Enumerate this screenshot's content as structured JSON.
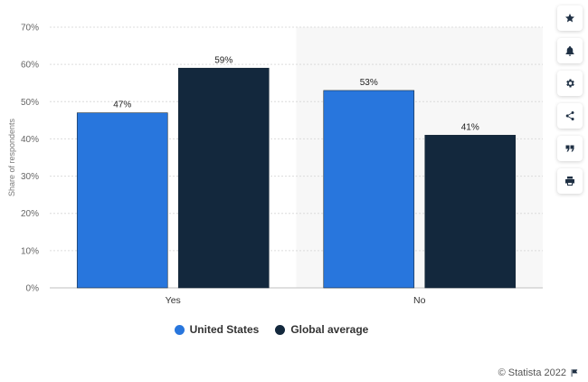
{
  "chart_data": {
    "type": "bar",
    "categories": [
      "Yes",
      "No"
    ],
    "series": [
      {
        "name": "United States",
        "values": [
          47,
          53
        ],
        "labels": [
          "47%",
          "53%"
        ],
        "color": "#2876dd"
      },
      {
        "name": "Global average",
        "values": [
          59,
          41
        ],
        "labels": [
          "59%",
          "41%"
        ],
        "color": "#13283d"
      }
    ],
    "ylabel": "Share of respondents",
    "ylim": [
      0,
      70
    ],
    "yticks": [
      "0%",
      "10%",
      "20%",
      "30%",
      "40%",
      "50%",
      "60%",
      "70%"
    ],
    "grid": true,
    "highlight_category": "No",
    "highlight_color": "#f7f7f7",
    "legend_position": "bottom"
  },
  "toolbar": {
    "icons": [
      "star-icon",
      "bell-icon",
      "gear-icon",
      "share-icon",
      "quote-icon",
      "print-icon"
    ]
  },
  "footer": {
    "copyright": "© Statista 2022"
  }
}
